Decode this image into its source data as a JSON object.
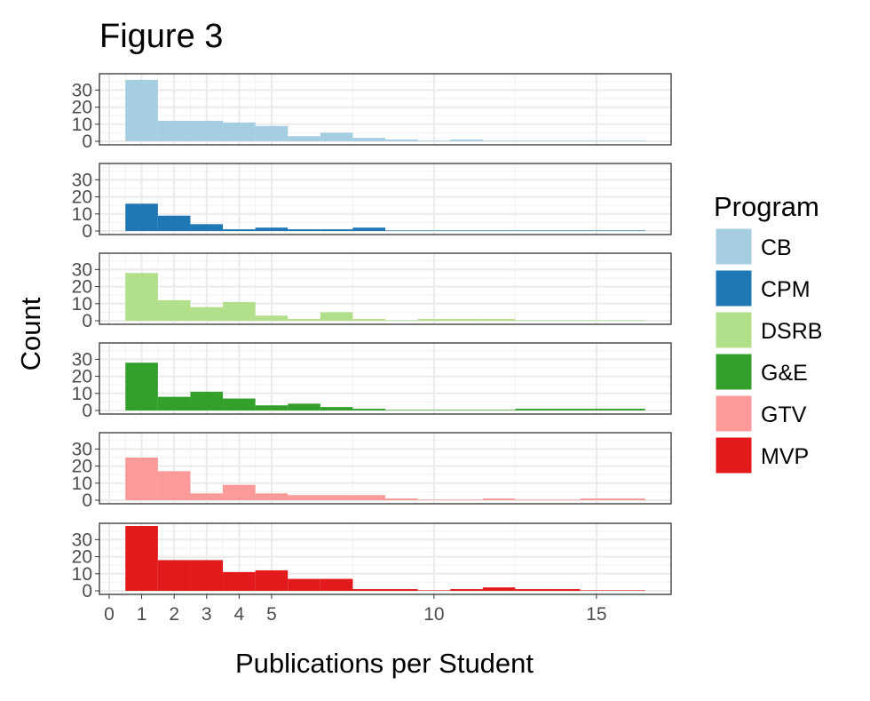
{
  "title": "Figure 3",
  "chart_data": {
    "type": "bar",
    "subtype": "faceted-histogram",
    "title": "Figure 3",
    "xlabel": "Publications per Student",
    "ylabel": "Count",
    "xlim": [
      -0.3,
      17.3
    ],
    "ylim": [
      0,
      38
    ],
    "x_ticks": [
      0,
      1,
      2,
      3,
      4,
      5,
      10,
      15
    ],
    "y_ticks": [
      0,
      10,
      20,
      30
    ],
    "grid": true,
    "bin_width": 1,
    "bin_starts": [
      0.5,
      1.5,
      2.5,
      3.5,
      4.5,
      5.5,
      6.5,
      7.5,
      8.5,
      9.5,
      10.5,
      11.5,
      12.5,
      13.5,
      14.5,
      15.5
    ],
    "legend_title": "Program",
    "legend_position": "right",
    "series": [
      {
        "name": "CB",
        "color": "#A6CEE3",
        "values": [
          36,
          12,
          12,
          11,
          9,
          3,
          5,
          2,
          1,
          0,
          1,
          0,
          0,
          0,
          0,
          0
        ]
      },
      {
        "name": "CPM",
        "color": "#1F78B4",
        "values": [
          16,
          9,
          4,
          1,
          2,
          1,
          1,
          2,
          0,
          0,
          0,
          0,
          0,
          0,
          0,
          0
        ]
      },
      {
        "name": "DSRB",
        "color": "#B2DF8A",
        "values": [
          28,
          12,
          8,
          11,
          3,
          1,
          5,
          1,
          0,
          1,
          1,
          1,
          0,
          0,
          0,
          0
        ]
      },
      {
        "name": "G&E",
        "color": "#33A02C",
        "values": [
          28,
          8,
          11,
          7,
          3,
          4,
          2,
          1,
          0,
          0,
          0,
          0,
          1,
          1,
          1,
          1
        ]
      },
      {
        "name": "GTV",
        "color": "#FB9A99",
        "values": [
          25,
          17,
          4,
          9,
          4,
          3,
          3,
          3,
          1,
          0,
          0,
          1,
          0,
          0,
          1,
          1
        ]
      },
      {
        "name": "MVP",
        "color": "#E31A1C",
        "values": [
          38,
          18,
          18,
          11,
          12,
          7,
          7,
          1,
          1,
          0,
          1,
          2,
          1,
          1,
          0,
          0
        ]
      }
    ]
  }
}
